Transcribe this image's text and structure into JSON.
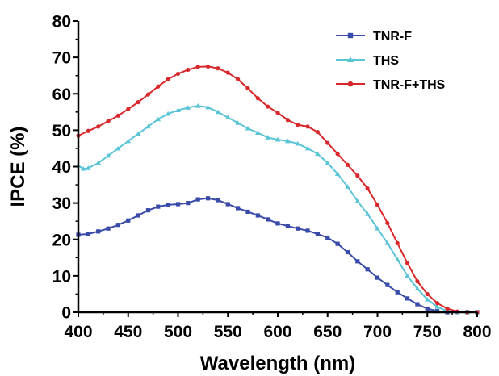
{
  "chart_data": {
    "type": "line",
    "title": "",
    "xlabel": "Wavelength (nm)",
    "ylabel": "IPCE (%)",
    "xlim": [
      400,
      800
    ],
    "ylim": [
      0,
      80
    ],
    "x_ticks": [
      "400",
      "450",
      "500",
      "550",
      "600",
      "650",
      "700",
      "750",
      "800"
    ],
    "y_ticks": [
      "0",
      "10",
      "20",
      "30",
      "40",
      "50",
      "60",
      "70",
      "80"
    ],
    "grid": false,
    "legend_position": "top-right",
    "series": [
      {
        "name": "TNR-F",
        "color": "#3a4aa8",
        "marker": "square",
        "points": [
          [
            400,
            21.3
          ],
          [
            410,
            21.5
          ],
          [
            420,
            22.2
          ],
          [
            430,
            23.0
          ],
          [
            440,
            24.0
          ],
          [
            450,
            25.2
          ],
          [
            460,
            26.6
          ],
          [
            470,
            28.0
          ],
          [
            480,
            29.0
          ],
          [
            490,
            29.5
          ],
          [
            500,
            29.7
          ],
          [
            510,
            30.0
          ],
          [
            520,
            31.0
          ],
          [
            530,
            31.3
          ],
          [
            540,
            30.8
          ],
          [
            550,
            29.7
          ],
          [
            560,
            28.6
          ],
          [
            570,
            27.6
          ],
          [
            580,
            26.6
          ],
          [
            590,
            25.5
          ],
          [
            600,
            24.4
          ],
          [
            610,
            23.7
          ],
          [
            620,
            23.0
          ],
          [
            630,
            22.4
          ],
          [
            640,
            21.5
          ],
          [
            650,
            20.5
          ],
          [
            660,
            18.8
          ],
          [
            670,
            16.5
          ],
          [
            680,
            14.0
          ],
          [
            690,
            11.8
          ],
          [
            700,
            9.5
          ],
          [
            710,
            7.5
          ],
          [
            720,
            5.5
          ],
          [
            730,
            3.8
          ],
          [
            740,
            2.2
          ],
          [
            750,
            1.0
          ],
          [
            760,
            0.3
          ],
          [
            770,
            0.0
          ],
          [
            780,
            0.0
          ],
          [
            790,
            0.0
          ],
          [
            800,
            0.0
          ]
        ]
      },
      {
        "name": "THS",
        "color": "#5bc4d6",
        "marker": "triangle",
        "points": [
          [
            400,
            40.3
          ],
          [
            405,
            39.4
          ],
          [
            410,
            39.6
          ],
          [
            420,
            41.0
          ],
          [
            430,
            43.0
          ],
          [
            440,
            45.0
          ],
          [
            450,
            47.0
          ],
          [
            460,
            49.0
          ],
          [
            470,
            51.0
          ],
          [
            480,
            53.0
          ],
          [
            490,
            54.5
          ],
          [
            500,
            55.5
          ],
          [
            510,
            56.2
          ],
          [
            520,
            56.7
          ],
          [
            530,
            56.3
          ],
          [
            540,
            55.0
          ],
          [
            550,
            53.5
          ],
          [
            560,
            52.0
          ],
          [
            570,
            50.5
          ],
          [
            580,
            49.3
          ],
          [
            590,
            48.0
          ],
          [
            600,
            47.4
          ],
          [
            610,
            47.0
          ],
          [
            620,
            46.3
          ],
          [
            630,
            45.0
          ],
          [
            640,
            43.5
          ],
          [
            650,
            41.0
          ],
          [
            660,
            38.0
          ],
          [
            670,
            34.5
          ],
          [
            680,
            30.5
          ],
          [
            690,
            27.0
          ],
          [
            700,
            23.0
          ],
          [
            710,
            19.0
          ],
          [
            720,
            14.5
          ],
          [
            730,
            10.0
          ],
          [
            740,
            6.5
          ],
          [
            750,
            3.5
          ],
          [
            760,
            1.5
          ],
          [
            770,
            0.3
          ],
          [
            780,
            0.0
          ],
          [
            790,
            0.0
          ],
          [
            800,
            0.0
          ]
        ]
      },
      {
        "name": "TNR-F+THS",
        "color": "#d8282b",
        "marker": "circle",
        "points": [
          [
            400,
            48.5
          ],
          [
            410,
            49.8
          ],
          [
            420,
            51.0
          ],
          [
            430,
            52.5
          ],
          [
            440,
            54.0
          ],
          [
            450,
            55.8
          ],
          [
            460,
            57.7
          ],
          [
            470,
            59.8
          ],
          [
            480,
            62.0
          ],
          [
            490,
            64.0
          ],
          [
            500,
            65.5
          ],
          [
            510,
            66.6
          ],
          [
            520,
            67.4
          ],
          [
            530,
            67.5
          ],
          [
            540,
            67.0
          ],
          [
            550,
            65.8
          ],
          [
            560,
            64.0
          ],
          [
            570,
            61.5
          ],
          [
            580,
            58.8
          ],
          [
            590,
            56.5
          ],
          [
            600,
            54.8
          ],
          [
            610,
            52.8
          ],
          [
            620,
            51.5
          ],
          [
            630,
            51.0
          ],
          [
            640,
            49.5
          ],
          [
            650,
            46.5
          ],
          [
            660,
            43.5
          ],
          [
            670,
            40.5
          ],
          [
            680,
            37.5
          ],
          [
            690,
            34.0
          ],
          [
            700,
            29.5
          ],
          [
            710,
            24.5
          ],
          [
            720,
            19.0
          ],
          [
            730,
            13.5
          ],
          [
            740,
            8.5
          ],
          [
            750,
            5.0
          ],
          [
            760,
            2.5
          ],
          [
            770,
            1.0
          ],
          [
            780,
            0.2
          ],
          [
            790,
            0.0
          ],
          [
            800,
            0.0
          ]
        ]
      }
    ]
  }
}
